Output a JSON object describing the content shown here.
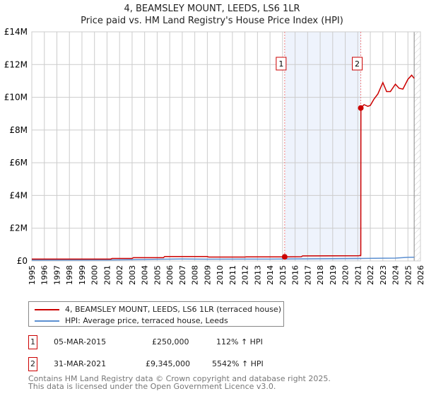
{
  "chart_data": {
    "type": "line",
    "title": "4, BEAMSLEY MOUNT, LEEDS, LS6 1LR",
    "subtitle": "Price paid vs. HM Land Registry's House Price Index (HPI)",
    "xlim": [
      1995,
      2026
    ],
    "ylim": [
      0,
      14000000
    ],
    "x_ticks": [
      "1995",
      "1996",
      "1997",
      "1998",
      "1999",
      "2000",
      "2001",
      "2002",
      "2003",
      "2004",
      "2005",
      "2006",
      "2007",
      "2008",
      "2009",
      "2010",
      "2011",
      "2012",
      "2013",
      "2014",
      "2015",
      "2016",
      "2017",
      "2018",
      "2019",
      "2020",
      "2021",
      "2022",
      "2023",
      "2024",
      "2025",
      "2026"
    ],
    "y_ticks": [
      {
        "v": 0,
        "label": "£0"
      },
      {
        "v": 2000000,
        "label": "£2M"
      },
      {
        "v": 4000000,
        "label": "£4M"
      },
      {
        "v": 6000000,
        "label": "£6M"
      },
      {
        "v": 8000000,
        "label": "£8M"
      },
      {
        "v": 10000000,
        "label": "£10M"
      },
      {
        "v": 12000000,
        "label": "£12M"
      },
      {
        "v": 14000000,
        "label": "£14M"
      }
    ],
    "grid": true,
    "series": [
      {
        "name": "4, BEAMSLEY MOUNT, LEEDS, LS6 1LR (terraced house)",
        "color": "#cc0000",
        "x": [
          1995,
          2001.3,
          2001.4,
          2003,
          2003.1,
          2005.5,
          2005.6,
          2009,
          2009.1,
          2012,
          2012.1,
          2015.17,
          2016.5,
          2016.6,
          2021.1,
          2021.24,
          2021.25,
          2021.5,
          2021.8,
          2022,
          2022.3,
          2022.6,
          2023,
          2023.3,
          2023.6,
          2024,
          2024.3,
          2024.6,
          2025,
          2025.3,
          2025.5
        ],
        "y": [
          115000,
          115000,
          150000,
          150000,
          200000,
          200000,
          270000,
          270000,
          240000,
          240000,
          250000,
          250000,
          260000,
          310000,
          320000,
          340000,
          9345000,
          9550000,
          9450000,
          9500000,
          9900000,
          10200000,
          10900000,
          10350000,
          10350000,
          10800000,
          10550000,
          10500000,
          11100000,
          11350000,
          11150000
        ]
      },
      {
        "name": "HPI: Average price, terraced house, Leeds",
        "color": "#5b8fd1",
        "x": [
          1995,
          2001,
          2003,
          2005,
          2007,
          2009,
          2012,
          2015,
          2018,
          2021,
          2023,
          2024,
          2025,
          2025.5
        ],
        "y": [
          55000,
          58000,
          75000,
          100000,
          120000,
          110000,
          112000,
          118000,
          135000,
          150000,
          170000,
          175000,
          220000,
          225000
        ]
      }
    ],
    "annotations": [
      {
        "label": "1",
        "x": 2015.17,
        "y": 250000
      },
      {
        "label": "2",
        "x": 2021.24,
        "y": 9345000
      }
    ],
    "shaded_range": [
      2015.17,
      2021.24
    ],
    "forecast_from": 2025.5
  },
  "legend": [
    "4, BEAMSLEY MOUNT, LEEDS, LS6 1LR (terraced house)",
    "HPI: Average price, terraced house, Leeds"
  ],
  "transactions": [
    {
      "n": "1",
      "date": "05-MAR-2015",
      "price": "£250,000",
      "hpi": "112% ↑ HPI"
    },
    {
      "n": "2",
      "date": "31-MAR-2021",
      "price": "£9,345,000",
      "hpi": "5542% ↑ HPI"
    }
  ],
  "footer": [
    "Contains HM Land Registry data © Crown copyright and database right 2025.",
    "This data is licensed under the Open Government Licence v3.0."
  ]
}
